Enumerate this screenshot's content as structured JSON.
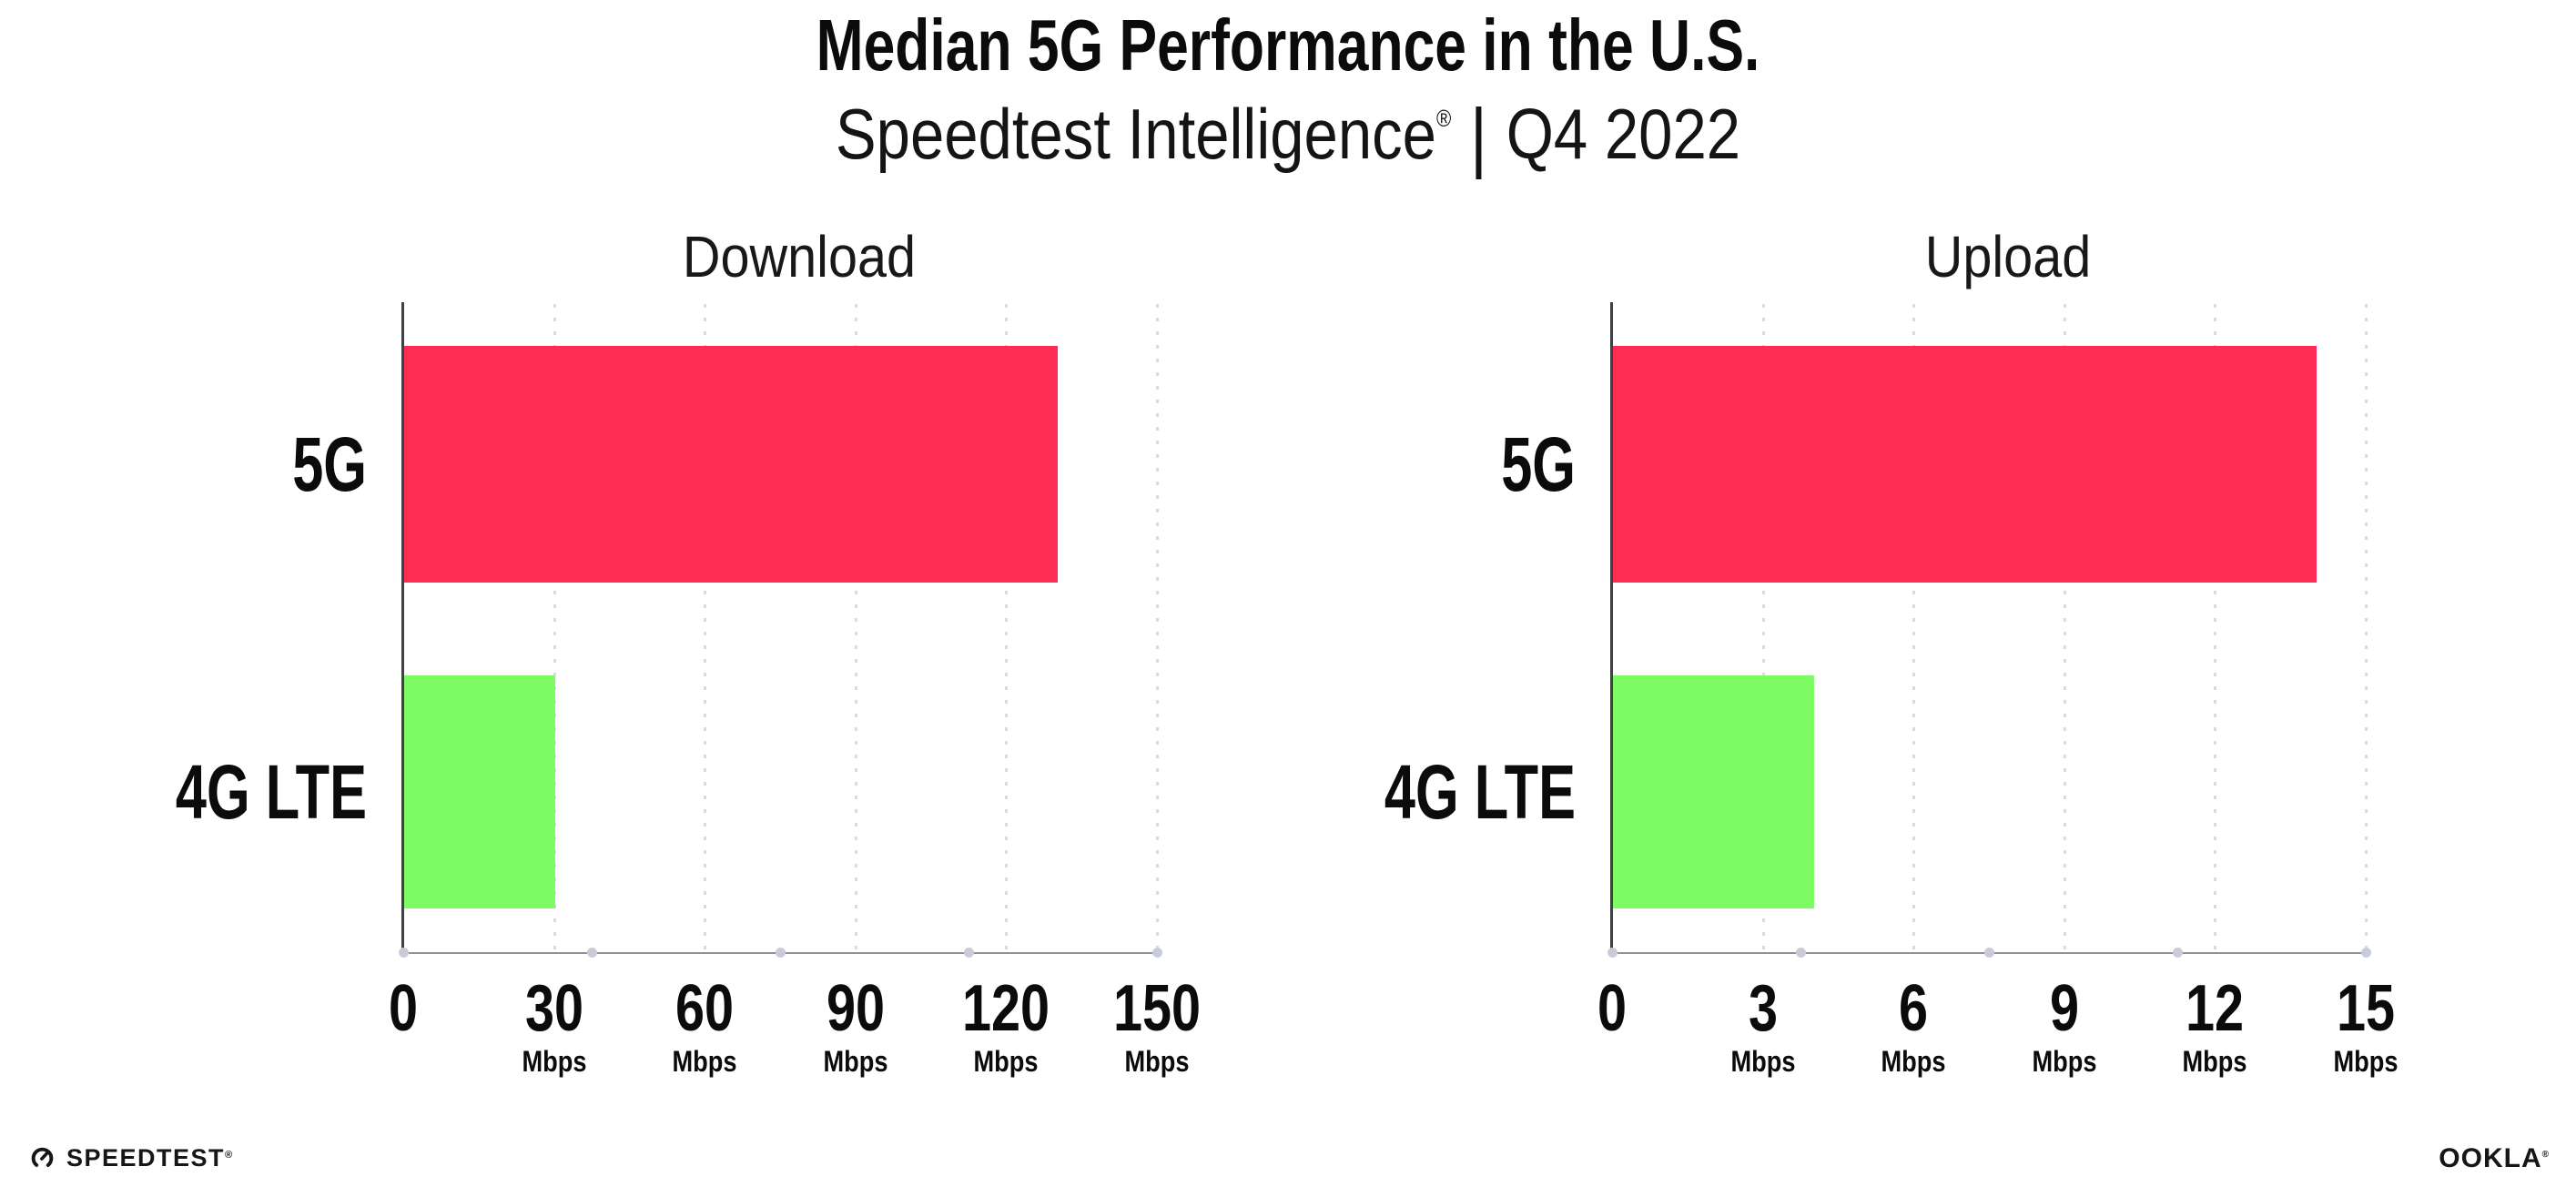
{
  "header": {
    "title": "Median 5G Performance in the U.S.",
    "subtitle": {
      "brand": "Speedtest Intelligence",
      "reg": "®",
      "separator": "|",
      "period": "Q4 2022"
    }
  },
  "chart_data": [
    {
      "type": "bar",
      "orientation": "horizontal",
      "title": "Download",
      "categories": [
        "5G",
        "4G LTE"
      ],
      "values": [
        130,
        30
      ],
      "unit": "Mbps",
      "xlim": [
        0,
        150
      ],
      "xticks": [
        0,
        30,
        60,
        90,
        120,
        150
      ],
      "series_colors": [
        "#FD2C55",
        "#7DFC64"
      ],
      "grid": "dotted-vertical",
      "legend": "none"
    },
    {
      "type": "bar",
      "orientation": "horizontal",
      "title": "Upload",
      "categories": [
        "5G",
        "4G LTE"
      ],
      "values": [
        14,
        4
      ],
      "unit": "Mbps",
      "xlim": [
        0,
        15
      ],
      "xticks": [
        0,
        3,
        6,
        9,
        12,
        15
      ],
      "series_colors": [
        "#FD2C55",
        "#7DFC64"
      ],
      "grid": "dotted-vertical",
      "legend": "none"
    }
  ],
  "footer": {
    "speedtest": "SPEEDTEST",
    "speedtest_mark": "®",
    "ookla": "OOKLA",
    "ookla_mark": "®"
  },
  "colors": {
    "bar_5g": "#FD2C55",
    "bar_4g_lte": "#7DFC64",
    "background": "#FFFFFF",
    "text": "#0B0B0C",
    "axis_baseline": "#909298",
    "axis_vertical": "#3E4148",
    "gridline": "#D9DBE4",
    "axis_dot": "#C9CCD8"
  }
}
